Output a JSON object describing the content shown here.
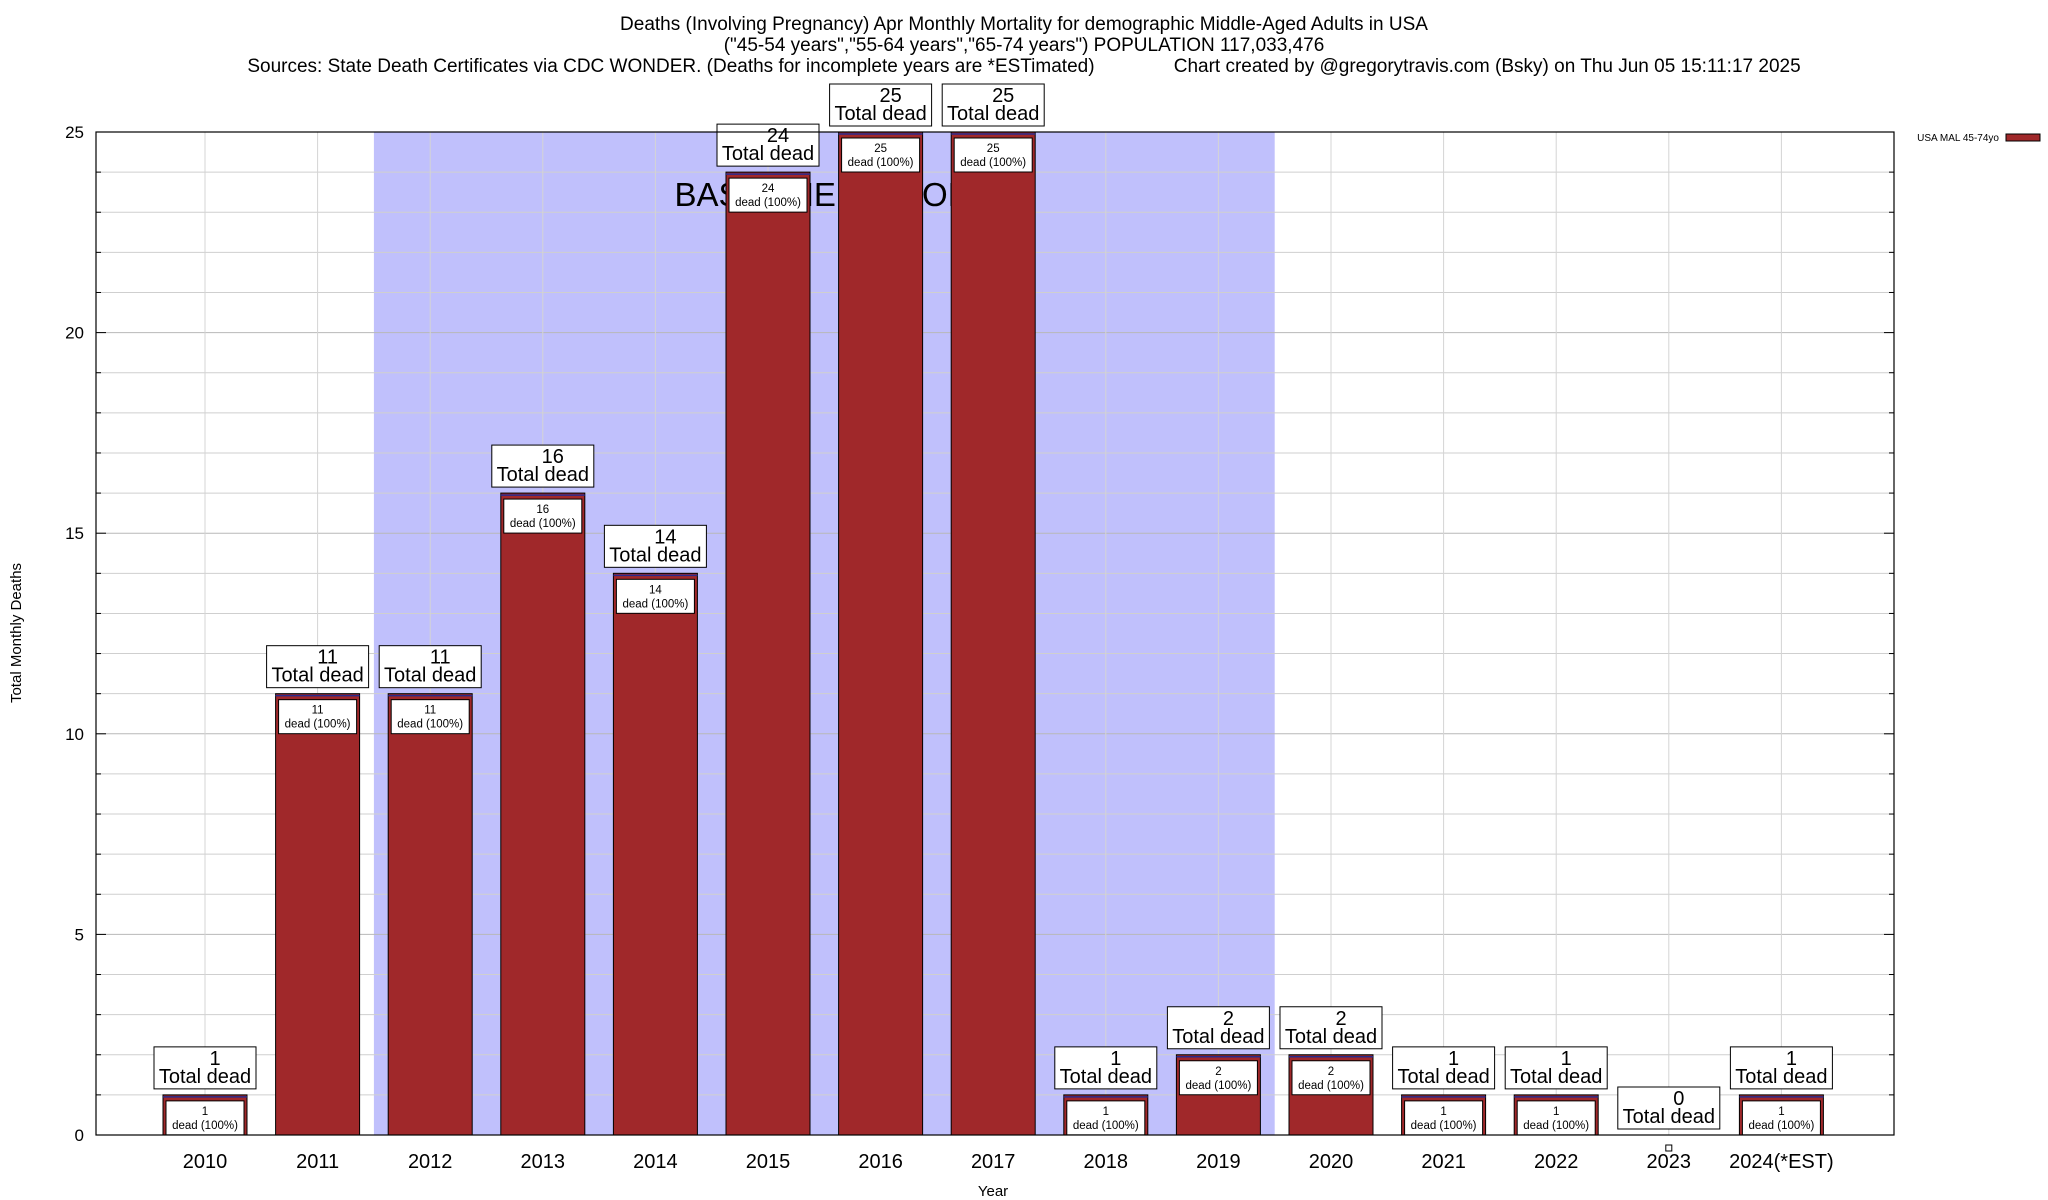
{
  "title": {
    "line1": "Deaths (Involving Pregnancy) Apr Monthly Mortality for demographic Middle-Aged Adults in USA",
    "line2": "(\"45-54 years\",\"55-64 years\",\"65-74 years\") POPULATION 117,033,476",
    "line3_source": "Sources: State Death Certificates via CDC WONDER. (Deaths for incomplete years are *ESTimated)",
    "line3_credit": "Chart created by @gregorytravis.com (Bsky) on Thu Jun 05 15:11:17 2025"
  },
  "chart_data": {
    "type": "bar",
    "categories": [
      "2010",
      "2011",
      "2012",
      "2013",
      "2014",
      "2015",
      "2016",
      "2017",
      "2018",
      "2019",
      "2020",
      "2021",
      "2022",
      "2023",
      "2024(*EST)"
    ],
    "series": [
      {
        "name": "USA MAL 45-74yo",
        "values": [
          1,
          11,
          11,
          16,
          14,
          24,
          25,
          25,
          1,
          2,
          2,
          1,
          1,
          0,
          1
        ],
        "color": "#a0282a"
      }
    ],
    "total_labels": [
      "1",
      "11",
      "11",
      "16",
      "14",
      "24",
      "25",
      "25",
      "1",
      "2",
      "2",
      "1",
      "1",
      "0",
      "1"
    ],
    "total_suffix": "Total dead",
    "inner_labels": [
      "1",
      "11",
      "11",
      "16",
      "14",
      "24",
      "25",
      "25",
      "1",
      "2",
      "2",
      "1",
      "1",
      "",
      "1"
    ],
    "inner_suffix": "dead (100%)",
    "xlabel": "Year",
    "ylabel": "Total Monthly Deaths",
    "ylim": [
      0,
      25
    ],
    "yticks": [
      0,
      5,
      10,
      15,
      20,
      25
    ],
    "grid": true,
    "legend_position": "top-right",
    "baseline": {
      "label": "BASELINE PERIOD",
      "start": "2012",
      "end": "2019",
      "color": "#c0c0fc"
    }
  }
}
